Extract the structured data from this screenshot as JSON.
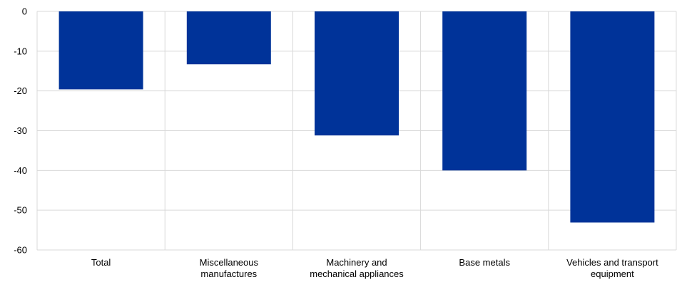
{
  "chart_data": {
    "type": "bar",
    "categories": [
      [
        "Total"
      ],
      [
        "Miscellaneous",
        "manufactures"
      ],
      [
        "Machinery and",
        "mechanical appliances"
      ],
      [
        "Base metals"
      ],
      [
        "Vehicles and transport",
        "equipment"
      ]
    ],
    "values": [
      -19.6,
      -13.3,
      -31.2,
      -40.0,
      -53.1
    ],
    "yticks": [
      "0",
      "-10",
      "-20",
      "-30",
      "-40",
      "-50",
      "-60"
    ],
    "ylim": [
      -60,
      0
    ],
    "grid": true,
    "bar_color": "#003399",
    "grid_color": "#d9d9d9"
  }
}
